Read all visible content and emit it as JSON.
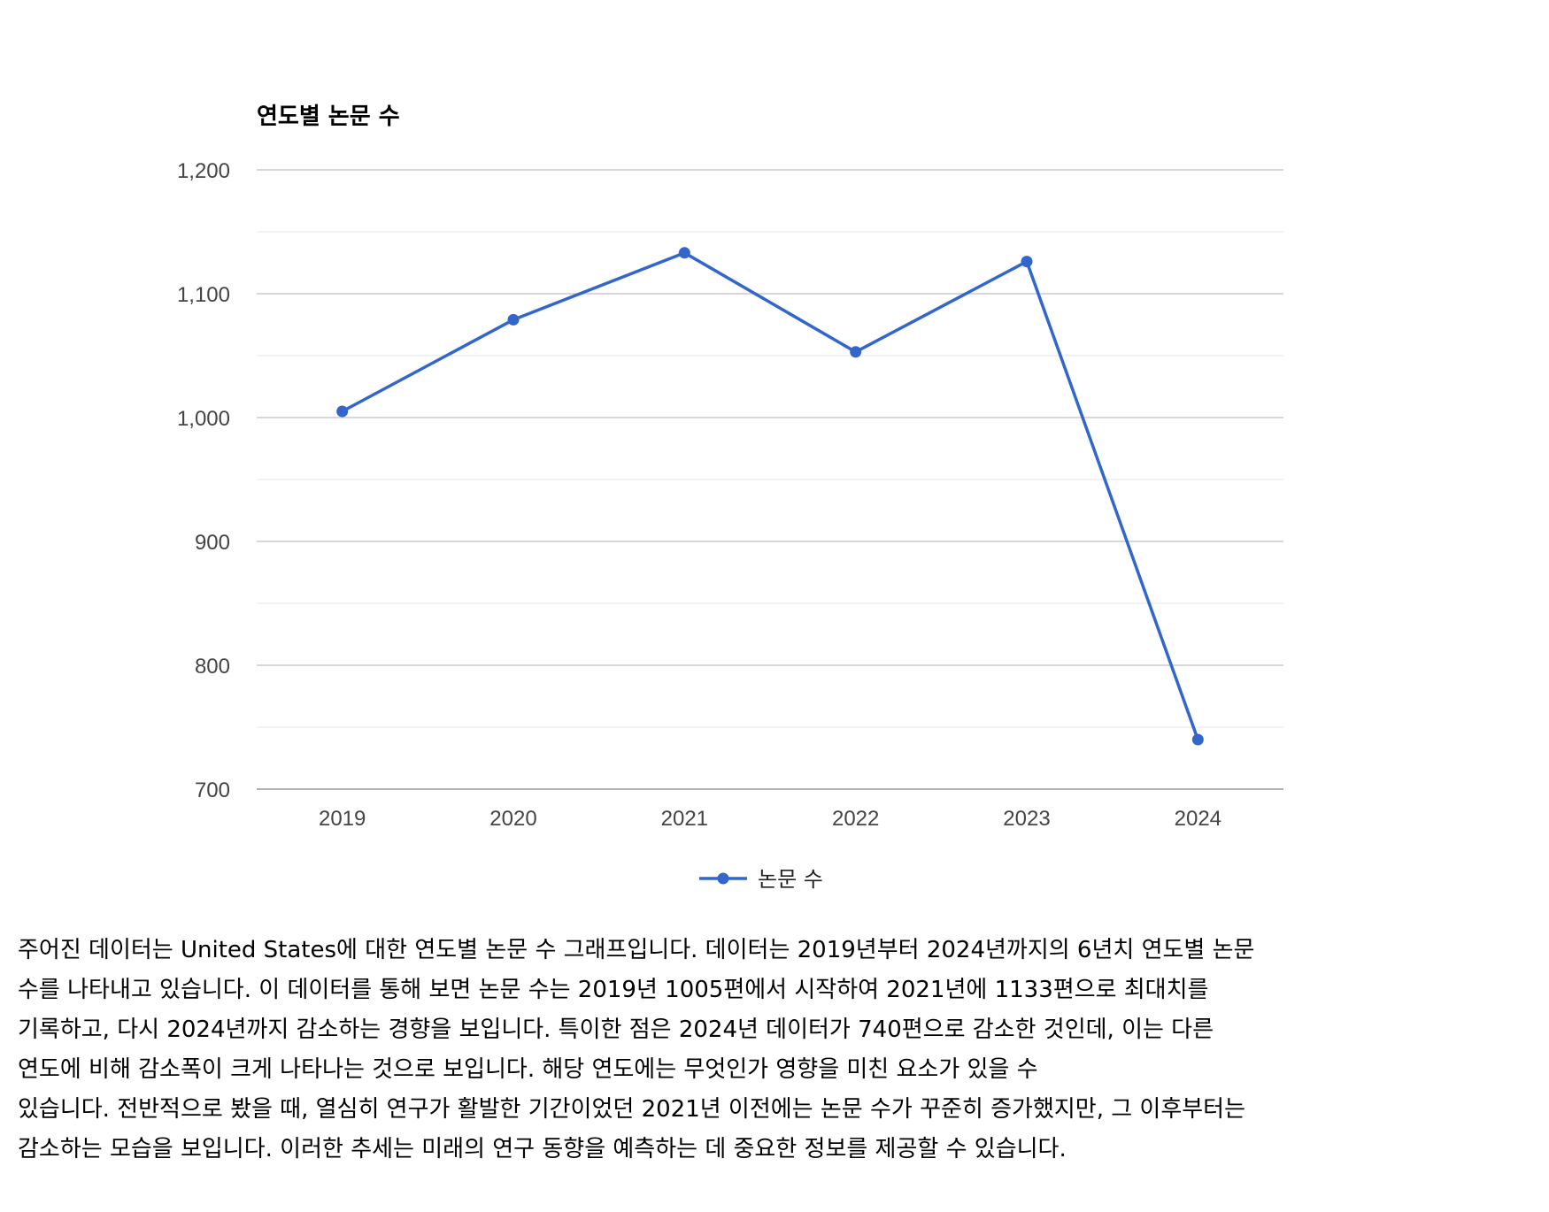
{
  "chart_data": {
    "type": "line",
    "title": "연도별 논문 수",
    "xlabel": "",
    "ylabel": "",
    "categories": [
      "2019",
      "2020",
      "2021",
      "2022",
      "2023",
      "2024"
    ],
    "series": [
      {
        "name": "논문 수",
        "values": [
          1005,
          1079,
          1133,
          1053,
          1126,
          740
        ],
        "color": "#3366cc"
      }
    ],
    "ylim": [
      700,
      1200
    ],
    "y_ticks": [
      700,
      800,
      900,
      1000,
      1100,
      1200
    ],
    "y_tick_labels": [
      "700",
      "800",
      "900",
      "1,000",
      "1,100",
      "1,200"
    ],
    "grid": true,
    "legend_position": "bottom"
  },
  "description_lines": [
    "주어진 데이터는 United States에 대한 연도별 논문 수 그래프입니다. 데이터는 2019년부터 2024년까지의 6년치 연도별 논문",
    "수를 나타내고 있습니다.  이 데이터를 통해 보면 논문 수는 2019년 1005편에서 시작하여 2021년에 1133편으로 최대치를",
    "기록하고, 다시 2024년까지 감소하는 경향을 보입니다. 특이한 점은 2024년 데이터가 740편으로 감소한 것인데, 이는 다른",
    "연도에 비해 감소폭이 크게 나타나는 것으로 보입니다. 해당 연도에는 무엇인가 영향을 미친 요소가 있을 수",
    "있습니다.  전반적으로 봤을 때, 열심히 연구가 활발한 기간이었던 2021년 이전에는 논문 수가 꾸준히 증가했지만, 그 이후부터는",
    "감소하는 모습을 보입니다. 이러한 추세는 미래의 연구 동향을 예측하는 데 중요한 정보를 제공할 수 있습니다."
  ]
}
